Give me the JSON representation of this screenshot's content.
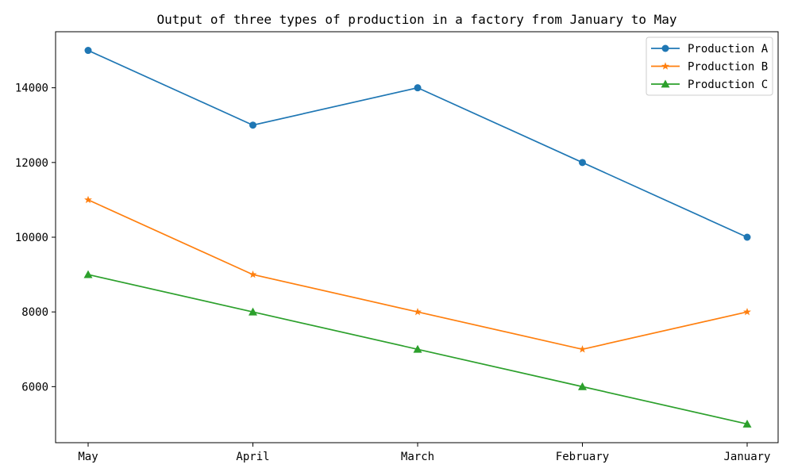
{
  "chart_data": {
    "type": "line",
    "title": "Output of three types of production in a factory from January to May",
    "xlabel": "",
    "ylabel": "",
    "categories": [
      "May",
      "April",
      "March",
      "February",
      "January"
    ],
    "yticks": [
      6000,
      8000,
      10000,
      12000,
      14000
    ],
    "ylim": [
      4500,
      15500
    ],
    "grid": false,
    "legend_position": "top-right",
    "series": [
      {
        "name": "Production A",
        "values": [
          15000,
          13000,
          14000,
          12000,
          10000
        ],
        "color": "#1f77b4",
        "marker": "circle"
      },
      {
        "name": "Production B",
        "values": [
          11000,
          9000,
          8000,
          7000,
          8000
        ],
        "color": "#ff7f0e",
        "marker": "star"
      },
      {
        "name": "Production C",
        "values": [
          9000,
          8000,
          7000,
          6000,
          5000
        ],
        "color": "#2ca02c",
        "marker": "triangle"
      }
    ]
  }
}
